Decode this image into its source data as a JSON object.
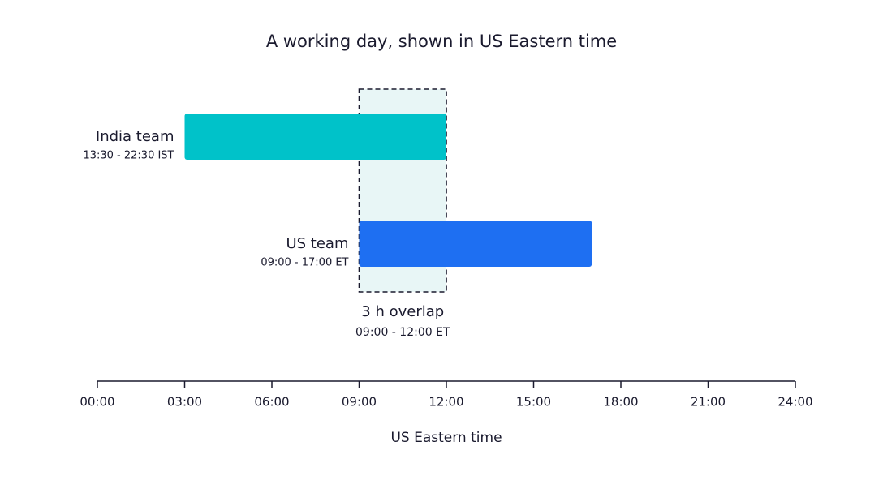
{
  "chart_data": {
    "type": "timeline",
    "title": "A working day, shown in US Eastern time",
    "xlabel": "US Eastern time",
    "xlim": [
      0,
      24
    ],
    "xticks": [
      {
        "value": 0,
        "label": "00:00"
      },
      {
        "value": 3,
        "label": "03:00"
      },
      {
        "value": 6,
        "label": "06:00"
      },
      {
        "value": 9,
        "label": "09:00"
      },
      {
        "value": 12,
        "label": "12:00"
      },
      {
        "value": 15,
        "label": "15:00"
      },
      {
        "value": 18,
        "label": "18:00"
      },
      {
        "value": 21,
        "label": "21:00"
      },
      {
        "value": 24,
        "label": "24:00"
      }
    ],
    "tasks": [
      {
        "name": "India team",
        "detail": "13:30 - 22:30 IST",
        "start": 3,
        "end": 12,
        "color": "#00c2c9"
      },
      {
        "name": "US team",
        "detail": "09:00 - 17:00 ET",
        "start": 9,
        "end": 17,
        "color": "#1e6ff2"
      }
    ],
    "overlap": {
      "label": "3 h overlap",
      "detail": "09:00 - 12:00 ET",
      "start": 9,
      "end": 12,
      "color": "#e8f6f6"
    }
  }
}
